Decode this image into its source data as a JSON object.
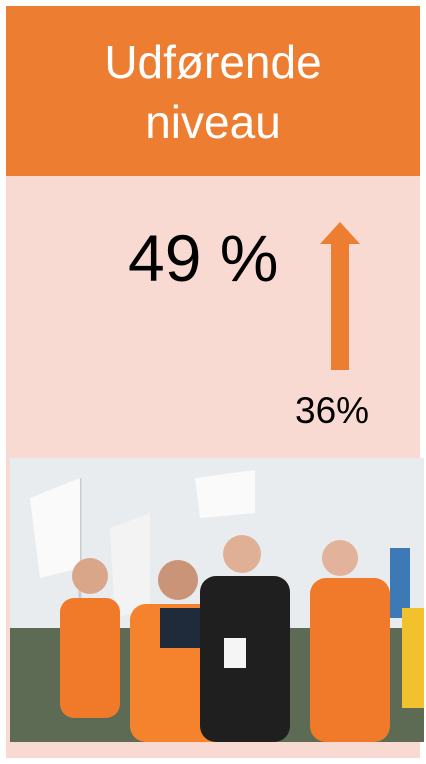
{
  "header": {
    "title": "Udførende niveau"
  },
  "stat": {
    "value": "49 %",
    "previous": "36%"
  }
}
